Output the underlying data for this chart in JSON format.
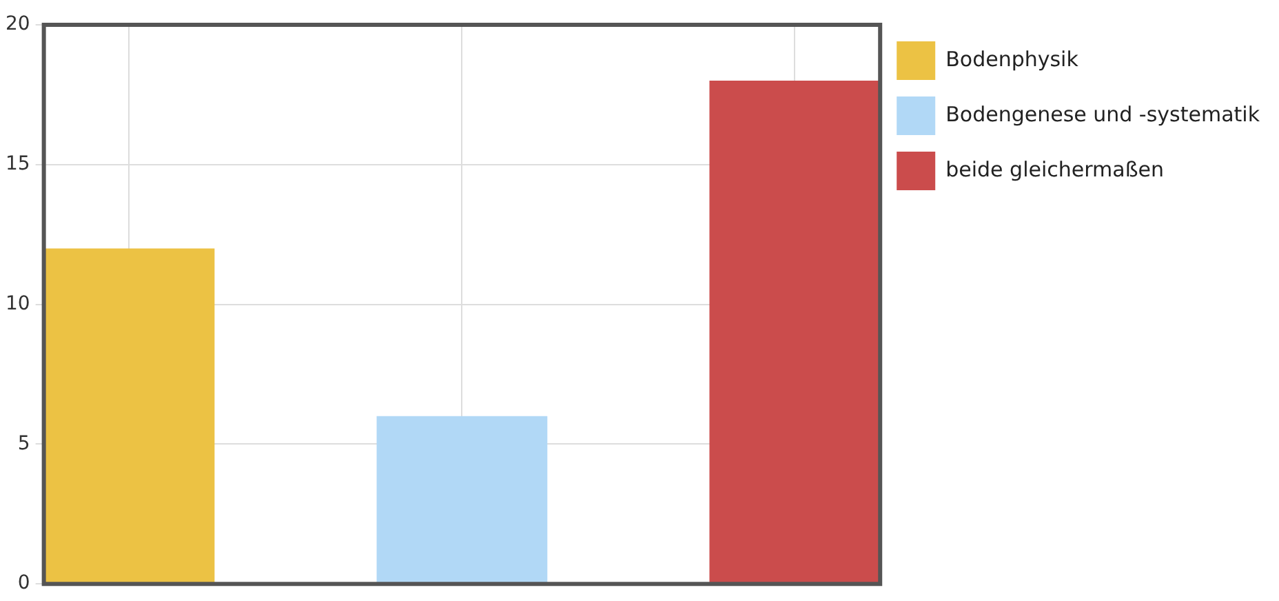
{
  "chart_data": {
    "type": "bar",
    "categories": [
      null,
      null,
      null
    ],
    "series": [
      {
        "name": "Bodenphysik",
        "color": "#ecc244",
        "values": [
          12,
          null,
          null
        ]
      },
      {
        "name": "Bodengenese und -systematik",
        "color": "#b1d8f6",
        "values": [
          null,
          6,
          null
        ]
      },
      {
        "name": "beide gleichermaßen",
        "color": "#cb4c4c",
        "values": [
          null,
          null,
          18
        ]
      }
    ],
    "ylim": [
      0,
      20
    ],
    "yticks": [
      0,
      5,
      10,
      15,
      20
    ],
    "grid": true,
    "legend": "top right"
  }
}
